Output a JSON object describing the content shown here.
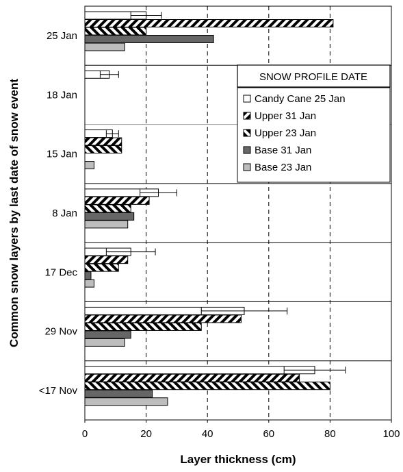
{
  "chart_data": {
    "type": "bar",
    "orientation": "horizontal",
    "xlabel": "Layer thickness (cm)",
    "ylabel": "Common snow layers by last date of snow event",
    "xlim": [
      0,
      100
    ],
    "xticks": [
      "0",
      "20",
      "40",
      "60",
      "80",
      "100"
    ],
    "grid": "dashed vertical at 20, 40, 60, 80",
    "categories": [
      "25 Jan",
      "18 Jan",
      "15 Jan",
      "8 Jan",
      "17 Dec",
      "29 Nov",
      "<17 Nov"
    ],
    "legend_title": "SNOW PROFILE DATE",
    "legend_position": "upper-right",
    "series": [
      {
        "name": "Candy Cane 25 Jan",
        "pattern": "white",
        "values": [
          20,
          8,
          9,
          24,
          15,
          52,
          75
        ],
        "error": [
          5,
          3,
          2,
          6,
          8,
          14,
          10
        ]
      },
      {
        "name": "Upper 31 Jan",
        "pattern": "diagonal-forward",
        "values": [
          81,
          null,
          12,
          21,
          14,
          51,
          70
        ],
        "error": null
      },
      {
        "name": "Upper 23 Jan",
        "pattern": "diagonal-backward",
        "values": [
          20,
          null,
          12,
          15,
          11,
          38,
          80
        ],
        "error": null
      },
      {
        "name": "Base 31 Jan",
        "pattern": "dark-grey",
        "color": "#666666",
        "values": [
          42,
          null,
          null,
          16,
          2,
          15,
          22
        ],
        "error": null
      },
      {
        "name": "Base 23 Jan",
        "pattern": "light-grey",
        "color": "#bdbdbd",
        "values": [
          13,
          null,
          3,
          14,
          3,
          13,
          27
        ],
        "error": null
      }
    ]
  }
}
